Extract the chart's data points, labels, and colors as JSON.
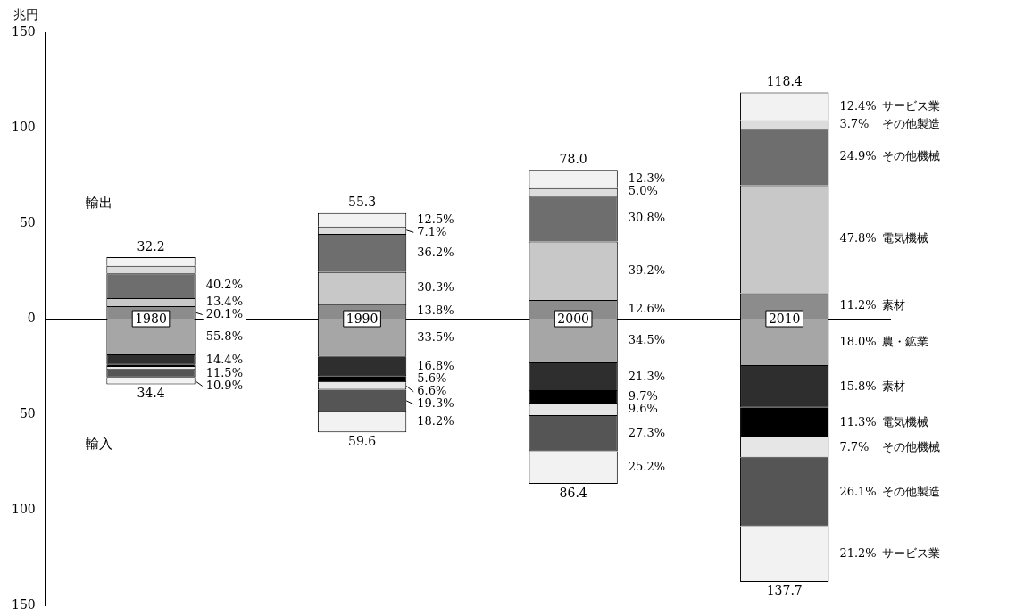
{
  "chart_data": {
    "type": "bar",
    "stacked": true,
    "ylabel": "兆円",
    "categories": [
      "1980",
      "1990",
      "2000",
      "2010"
    ],
    "ylim": [
      -150,
      150
    ],
    "yticks": [
      {
        "value": -150,
        "label": "150"
      },
      {
        "value": -100,
        "label": "100"
      },
      {
        "value": -50,
        "label": "50"
      },
      0,
      50,
      100,
      150
    ],
    "series": [
      {
        "name": "素材",
        "color": "#8c8c8c",
        "values": [
          6.5,
          7.6,
          9.8,
          13.3
        ]
      },
      {
        "name": "電気機械",
        "color": "#c8c8c8",
        "values": [
          4.3,
          16.8,
          30.6,
          56.6
        ]
      },
      {
        "name": "その他機械",
        "color": "#6e6e6e",
        "values": [
          12.9,
          20.0,
          24.0,
          29.5
        ]
      },
      {
        "name": "その他製造",
        "color": "#dcdcdc",
        "values": [
          4.0,
          3.9,
          3.9,
          4.4
        ]
      },
      {
        "name": "サービス業",
        "color": "#f2f2f2",
        "values": [
          4.5,
          6.9,
          9.6,
          14.7
        ]
      },
      {
        "name": "農・鉱業",
        "color": "#a6a6a6",
        "values": [
          -19.2,
          -20.0,
          -23.4,
          -24.8
        ]
      },
      {
        "name": "素材",
        "color": "#2e2e2e",
        "values": [
          -5.0,
          -10.0,
          -14.4,
          -21.8
        ]
      },
      {
        "name": "電気機械",
        "color": "#000000",
        "values": [
          -1.0,
          -3.3,
          -6.6,
          -15.6
        ]
      },
      {
        "name": "その他機械",
        "color": "#e6e6e6",
        "values": [
          -1.5,
          -3.9,
          -6.5,
          -10.6
        ]
      },
      {
        "name": "その他製造",
        "color": "#555555",
        "values": [
          -4.0,
          -11.5,
          -18.5,
          -35.9
        ]
      },
      {
        "name": "サービス業",
        "color": "#f2f2f2",
        "values": [
          -3.7,
          -10.8,
          -17.1,
          -29.2
        ]
      }
    ],
    "annotations": [
      "輸出",
      "輸入",
      {
        "text": "32.2",
        "x": "1980",
        "y": 32.2
      },
      {
        "text": "55.3",
        "x": "1990",
        "y": 55.3
      },
      {
        "text": "78.0",
        "x": "2000",
        "y": 78.0
      },
      {
        "text": "118.4",
        "x": "2010",
        "y": 118.4
      },
      {
        "text": "34.4",
        "x": "1980",
        "y": -34.4
      },
      {
        "text": "59.6",
        "x": "1990",
        "y": -59.6
      },
      {
        "text": "86.4",
        "x": "2000",
        "y": -86.4
      },
      {
        "text": "137.7",
        "x": "2010",
        "y": -137.7
      },
      "40.2%",
      "13.4%",
      "20.1%",
      "55.8%",
      "14.4%",
      "11.5%",
      "10.9%",
      "12.5%",
      "7.1%",
      "36.2%",
      "30.3%",
      "13.8%",
      "33.5%",
      "16.8%",
      "5.6%",
      "6.6%",
      "19.3%",
      "18.2%",
      "12.3%",
      "5.0%",
      "30.8%",
      "39.2%",
      "12.6%",
      "34.5%",
      "21.3%",
      "9.7%",
      "9.6%",
      "27.3%",
      "25.2%",
      "12.4%",
      "3.7%",
      "24.9%",
      "47.8%",
      "11.2%",
      "18.0%",
      "15.8%",
      "11.3%",
      "7.7%",
      "26.1%",
      "21.2%"
    ]
  }
}
